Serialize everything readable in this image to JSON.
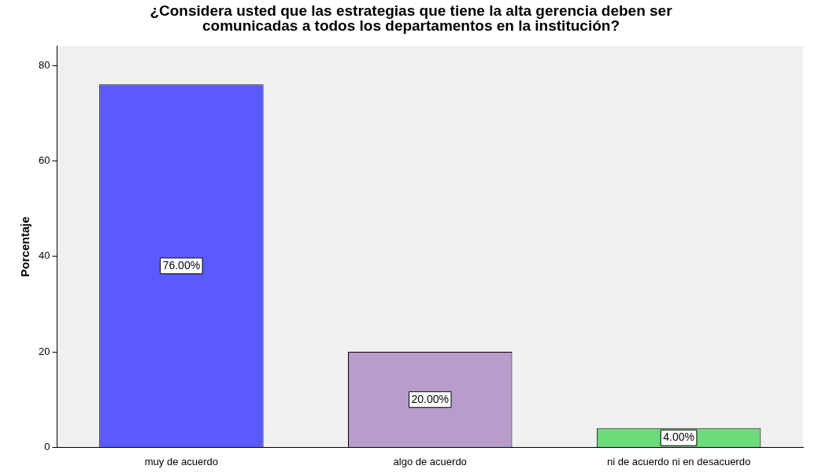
{
  "chart_data": {
    "type": "bar",
    "title": "¿Considera usted que las estrategias que tiene la alta gerencia deben ser comunicadas a todos los departamentos en la institución?",
    "ylabel": "Porcentaje",
    "categories": [
      "muy de acuerdo",
      "algo de acuerdo",
      "ni de acuerdo ni en desacuerdo"
    ],
    "values": [
      76,
      20,
      4
    ],
    "colors": [
      "#5a5aff",
      "#b89ccb",
      "#6cdb7a"
    ],
    "value_labels": [
      "76.00%",
      "20.00%",
      "4.00%"
    ],
    "ylim": [
      0,
      84
    ],
    "yticks": [
      0,
      20,
      40,
      60,
      80
    ],
    "grid": false,
    "legend": false
  }
}
